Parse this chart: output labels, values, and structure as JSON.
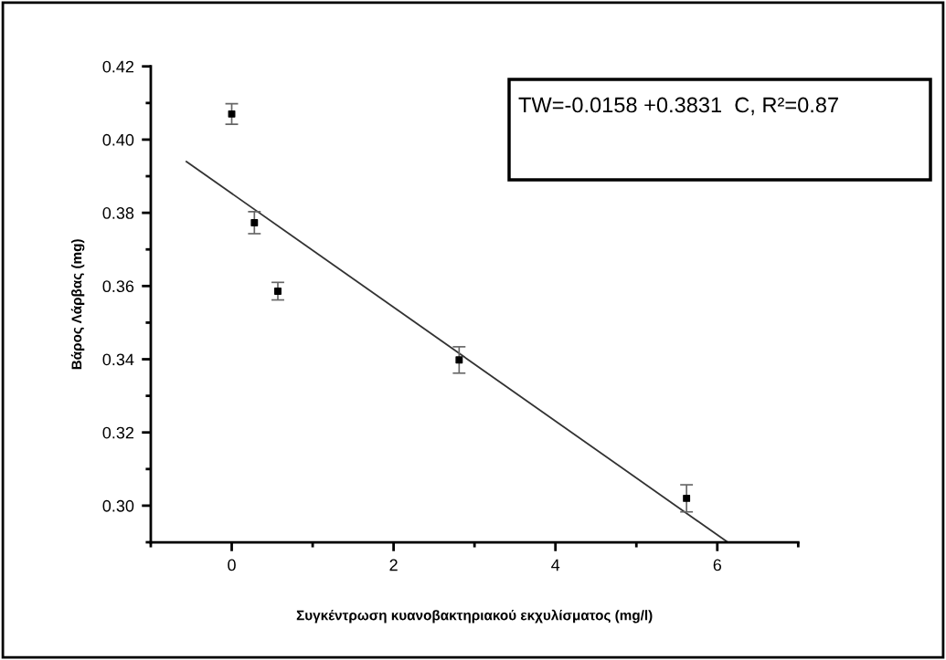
{
  "chart_data": {
    "type": "scatter",
    "xlabel": "Συγκέντρωση κυανοβακτηριακού εκχυλίσματος (mg/l)",
    "ylabel": "Βάρος Λάρβας (mg)",
    "annotations": [
      "TW=-0.0158 +0.3831  C, R²=0.87"
    ],
    "xlim": [
      -1,
      7
    ],
    "xticks": [
      {
        "value": -1,
        "label": null
      },
      0,
      {
        "value": 1,
        "label": null
      },
      2,
      {
        "value": 3,
        "label": null
      },
      4,
      {
        "value": 5,
        "label": null
      },
      6,
      {
        "value": 7,
        "label": null
      }
    ],
    "ylim": [
      0.29,
      0.42
    ],
    "yticks": [
      {
        "value": 0.29,
        "label": null
      },
      {
        "value": 0.3,
        "label": "0.30"
      },
      {
        "value": 0.31,
        "label": null
      },
      0.32,
      {
        "value": 0.33,
        "label": null
      },
      0.34,
      {
        "value": 0.35,
        "label": null
      },
      0.36,
      {
        "value": 0.37,
        "label": null
      },
      0.38,
      {
        "value": 0.39,
        "label": null
      },
      {
        "value": 0.4,
        "label": "0.40"
      },
      {
        "value": 0.41,
        "label": null
      },
      0.42
    ],
    "grid": false,
    "legend": false,
    "series": [
      {
        "color": "#000000",
        "marker": "square",
        "x": [
          0,
          0.28,
          0.57,
          2.81,
          5.62
        ],
        "values": [
          0.407,
          0.3773,
          0.3586,
          0.3398,
          0.302
        ],
        "errors": [
          0.0028,
          0.003,
          0.0024,
          0.0036,
          0.0037
        ]
      },
      {
        "type": "line",
        "color": "#333333",
        "line_style": "solid",
        "x": [
          -0.56,
          6.13
        ],
        "values": [
          0.394,
          0.29
        ]
      }
    ]
  }
}
